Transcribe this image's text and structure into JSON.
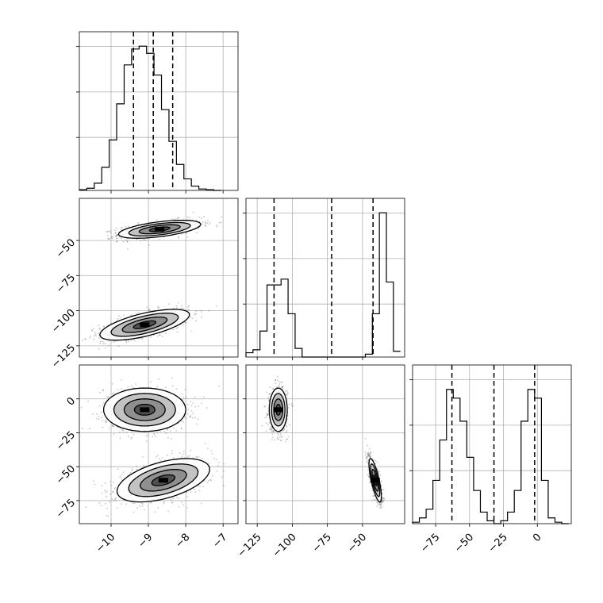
{
  "chart_data": {
    "type": "corner",
    "parameters": [
      "",
      "",
      ""
    ],
    "ranges": [
      [
        -10.85,
        -6.6
      ],
      [
        -133,
        -20
      ],
      [
        -92,
        25
      ]
    ],
    "ticks": [
      [
        -10,
        -9,
        -8,
        -7
      ],
      [
        -125,
        -100,
        -75,
        -50
      ],
      [
        -75,
        -50,
        -25,
        0
      ]
    ],
    "tick_labels": [
      [
        "−10",
        "−9",
        "−8",
        "−7"
      ],
      [
        "−125",
        "−100",
        "−75",
        "−50"
      ],
      [
        "−75",
        "−50",
        "−25",
        "0"
      ]
    ],
    "histograms": [
      {
        "edges": [
          -10.85,
          -10.65,
          -10.45,
          -10.25,
          -10.05,
          -9.85,
          -9.65,
          -9.45,
          -9.25,
          -9.05,
          -8.85,
          -8.65,
          -8.45,
          -8.25,
          -8.05,
          -7.85,
          -7.65,
          -7.45,
          -7.25,
          -7.05
        ],
        "counts": [
          0.005,
          0.015,
          0.05,
          0.16,
          0.35,
          0.6,
          0.87,
          0.98,
          1.0,
          0.95,
          0.8,
          0.56,
          0.34,
          0.18,
          0.08,
          0.03,
          0.01,
          0.005,
          0.0
        ],
        "quantiles": [
          -9.4,
          -8.87,
          -8.35
        ]
      },
      {
        "edges": [
          -133,
          -128,
          -123,
          -118,
          -113,
          -108,
          -103,
          -98,
          -93,
          -88,
          -83,
          -78,
          -73,
          -68,
          -63,
          -58,
          -53,
          -48,
          -43,
          -38,
          -33,
          -28,
          -23
        ],
        "counts": [
          0.03,
          0.05,
          0.18,
          0.5,
          0.5,
          0.54,
          0.3,
          0.06,
          0.0,
          0.0,
          0.0,
          0.0,
          0.0,
          0.0,
          0.0,
          0.0,
          0.0,
          0.02,
          0.3,
          1.0,
          0.52,
          0.04
        ],
        "quantiles": [
          -113,
          -72,
          -42.5
        ]
      },
      {
        "edges": [
          -92,
          -87,
          -82,
          -77,
          -72,
          -67,
          -62,
          -57,
          -52,
          -47,
          -42,
          -37,
          -32,
          -27,
          -22,
          -17,
          -12,
          -7,
          -2,
          3,
          8,
          13,
          18,
          23
        ],
        "counts": [
          0.01,
          0.04,
          0.1,
          0.3,
          0.58,
          0.93,
          0.87,
          0.71,
          0.46,
          0.23,
          0.08,
          0.02,
          0.0,
          0.02,
          0.08,
          0.23,
          0.71,
          0.93,
          0.87,
          0.3,
          0.04,
          0.01,
          0.0
        ],
        "quantiles": [
          -63,
          -32,
          -2
        ]
      }
    ],
    "scatter_panels": [
      {
        "x_param": 0,
        "y_param": 1,
        "modes": [
          {
            "mean": [
              -8.7,
              -42
            ],
            "sd": [
              0.55,
              3.2
            ],
            "rho": 0.55
          },
          {
            "mean": [
              -9.1,
              -110
            ],
            "sd": [
              0.6,
              5.5
            ],
            "rho": 0.65
          }
        ]
      },
      {
        "x_param": 0,
        "y_param": 2,
        "modes": [
          {
            "mean": [
              -9.1,
              -8
            ],
            "sd": [
              0.55,
              8
            ],
            "rho": 0.0
          },
          {
            "mean": [
              -8.6,
              -60
            ],
            "sd": [
              0.62,
              8
            ],
            "rho": 0.5
          }
        ]
      },
      {
        "x_param": 1,
        "y_param": 2,
        "modes": [
          {
            "mean": [
              -110,
              -8
            ],
            "sd": [
              3.2,
              8
            ],
            "rho": 0.0
          },
          {
            "mean": [
              -41,
              -60
            ],
            "sd": [
              2.2,
              8
            ],
            "rho": -0.75
          }
        ]
      }
    ],
    "colors": {
      "ink": "#000000",
      "grid": "#b0b0b0",
      "point": "#000000"
    }
  }
}
